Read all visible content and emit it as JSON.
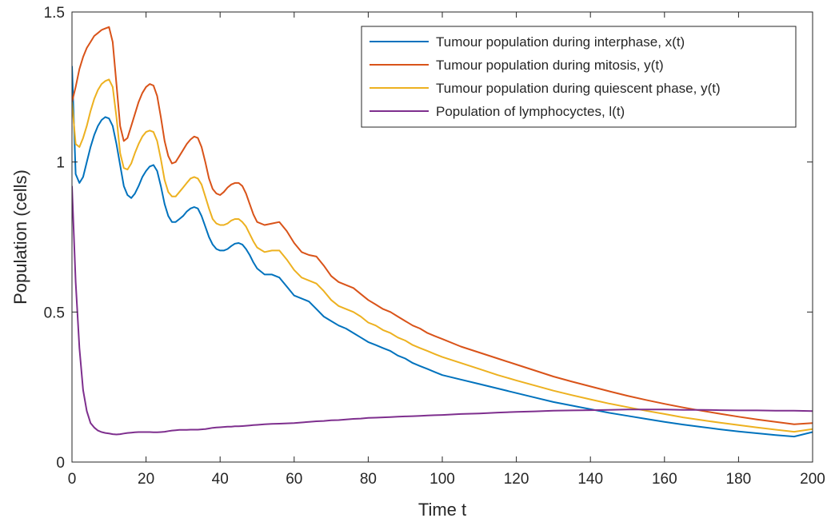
{
  "chart_data": {
    "type": "line",
    "title": "",
    "xlabel": "Time t",
    "ylabel": "Population (cells)",
    "xlim": [
      0,
      200
    ],
    "ylim": [
      0,
      1.5
    ],
    "xticks": [
      0,
      20,
      40,
      60,
      80,
      100,
      120,
      140,
      160,
      180,
      200
    ],
    "yticks": [
      0,
      0.5,
      1,
      1.5
    ],
    "xtick_labels": [
      "0",
      "20",
      "40",
      "60",
      "80",
      "100",
      "120",
      "140",
      "160",
      "180",
      "200"
    ],
    "ytick_labels": [
      "0",
      "0.5",
      "1",
      "1.5"
    ],
    "grid": false,
    "legend_position": "top-right",
    "x": [
      0,
      1,
      2,
      3,
      4,
      5,
      6,
      7,
      8,
      9,
      10,
      11,
      12,
      13,
      14,
      15,
      16,
      17,
      18,
      19,
      20,
      21,
      22,
      23,
      24,
      25,
      26,
      27,
      28,
      29,
      30,
      31,
      32,
      33,
      34,
      35,
      36,
      37,
      38,
      39,
      40,
      41,
      42,
      43,
      44,
      45,
      46,
      47,
      48,
      49,
      50,
      52,
      54,
      56,
      58,
      60,
      62,
      64,
      66,
      68,
      70,
      72,
      74,
      76,
      78,
      80,
      82,
      84,
      86,
      88,
      90,
      92,
      94,
      96,
      98,
      100,
      105,
      110,
      115,
      120,
      125,
      130,
      135,
      140,
      145,
      150,
      155,
      160,
      165,
      170,
      175,
      180,
      185,
      190,
      195,
      200
    ],
    "series": [
      {
        "name": "Tumour population during interphase, x(t)",
        "color": "#0072BD",
        "values": [
          1.32,
          0.96,
          0.93,
          0.95,
          1.0,
          1.05,
          1.09,
          1.12,
          1.14,
          1.15,
          1.145,
          1.12,
          1.06,
          0.99,
          0.92,
          0.89,
          0.88,
          0.895,
          0.92,
          0.95,
          0.97,
          0.985,
          0.99,
          0.97,
          0.92,
          0.86,
          0.82,
          0.8,
          0.8,
          0.81,
          0.82,
          0.835,
          0.845,
          0.85,
          0.845,
          0.82,
          0.785,
          0.75,
          0.725,
          0.71,
          0.705,
          0.705,
          0.71,
          0.72,
          0.728,
          0.73,
          0.725,
          0.71,
          0.69,
          0.665,
          0.645,
          0.625,
          0.625,
          0.615,
          0.585,
          0.555,
          0.545,
          0.535,
          0.51,
          0.485,
          0.47,
          0.455,
          0.445,
          0.43,
          0.415,
          0.4,
          0.39,
          0.38,
          0.37,
          0.355,
          0.345,
          0.33,
          0.32,
          0.31,
          0.3,
          0.29,
          0.275,
          0.26,
          0.245,
          0.23,
          0.215,
          0.2,
          0.188,
          0.176,
          0.164,
          0.154,
          0.144,
          0.134,
          0.125,
          0.117,
          0.109,
          0.102,
          0.096,
          0.09,
          0.085,
          0.1
        ]
      },
      {
        "name": "Tumour population during mitosis, y(t)",
        "color": "#D95319",
        "values": [
          1.2,
          1.25,
          1.31,
          1.35,
          1.38,
          1.4,
          1.42,
          1.43,
          1.44,
          1.445,
          1.45,
          1.4,
          1.26,
          1.12,
          1.07,
          1.08,
          1.12,
          1.16,
          1.2,
          1.23,
          1.25,
          1.26,
          1.255,
          1.22,
          1.15,
          1.07,
          1.02,
          0.995,
          1.0,
          1.02,
          1.04,
          1.06,
          1.075,
          1.085,
          1.08,
          1.05,
          1.0,
          0.945,
          0.91,
          0.895,
          0.89,
          0.9,
          0.915,
          0.925,
          0.93,
          0.93,
          0.92,
          0.895,
          0.86,
          0.825,
          0.8,
          0.79,
          0.795,
          0.8,
          0.77,
          0.73,
          0.7,
          0.69,
          0.685,
          0.655,
          0.62,
          0.6,
          0.59,
          0.58,
          0.56,
          0.54,
          0.525,
          0.51,
          0.5,
          0.485,
          0.47,
          0.455,
          0.445,
          0.43,
          0.42,
          0.41,
          0.385,
          0.365,
          0.345,
          0.325,
          0.305,
          0.285,
          0.268,
          0.252,
          0.236,
          0.221,
          0.207,
          0.194,
          0.182,
          0.171,
          0.161,
          0.151,
          0.142,
          0.134,
          0.126,
          0.13
        ]
      },
      {
        "name": "Tumour population during quiescent phase, y(t)",
        "color": "#EDB120",
        "values": [
          1.2,
          1.06,
          1.05,
          1.08,
          1.12,
          1.17,
          1.21,
          1.24,
          1.26,
          1.27,
          1.275,
          1.25,
          1.15,
          1.03,
          0.98,
          0.975,
          0.995,
          1.03,
          1.06,
          1.085,
          1.1,
          1.105,
          1.1,
          1.07,
          1.01,
          0.94,
          0.9,
          0.885,
          0.885,
          0.9,
          0.915,
          0.93,
          0.945,
          0.95,
          0.945,
          0.925,
          0.885,
          0.845,
          0.81,
          0.795,
          0.79,
          0.79,
          0.795,
          0.805,
          0.81,
          0.81,
          0.8,
          0.785,
          0.76,
          0.735,
          0.715,
          0.7,
          0.705,
          0.705,
          0.675,
          0.64,
          0.615,
          0.605,
          0.595,
          0.57,
          0.54,
          0.52,
          0.51,
          0.5,
          0.485,
          0.465,
          0.455,
          0.44,
          0.43,
          0.415,
          0.405,
          0.39,
          0.38,
          0.37,
          0.36,
          0.35,
          0.33,
          0.31,
          0.29,
          0.272,
          0.255,
          0.238,
          0.223,
          0.209,
          0.195,
          0.183,
          0.171,
          0.16,
          0.149,
          0.14,
          0.131,
          0.123,
          0.115,
          0.108,
          0.101,
          0.11
        ]
      },
      {
        "name": "Population of lymphocyctes, l(t)",
        "color": "#7E2F8E",
        "values": [
          0.92,
          0.6,
          0.38,
          0.24,
          0.17,
          0.13,
          0.115,
          0.105,
          0.1,
          0.097,
          0.095,
          0.093,
          0.092,
          0.093,
          0.095,
          0.097,
          0.098,
          0.099,
          0.1,
          0.1,
          0.1,
          0.1,
          0.099,
          0.099,
          0.1,
          0.101,
          0.103,
          0.105,
          0.106,
          0.107,
          0.107,
          0.107,
          0.108,
          0.108,
          0.108,
          0.109,
          0.11,
          0.112,
          0.114,
          0.115,
          0.116,
          0.117,
          0.118,
          0.118,
          0.119,
          0.119,
          0.12,
          0.121,
          0.122,
          0.123,
          0.124,
          0.126,
          0.127,
          0.128,
          0.129,
          0.13,
          0.132,
          0.134,
          0.136,
          0.137,
          0.139,
          0.14,
          0.142,
          0.144,
          0.145,
          0.147,
          0.148,
          0.149,
          0.15,
          0.151,
          0.152,
          0.153,
          0.154,
          0.155,
          0.156,
          0.157,
          0.16,
          0.162,
          0.165,
          0.167,
          0.169,
          0.171,
          0.172,
          0.173,
          0.174,
          0.175,
          0.175,
          0.175,
          0.174,
          0.174,
          0.173,
          0.172,
          0.172,
          0.171,
          0.171,
          0.17
        ]
      }
    ]
  }
}
